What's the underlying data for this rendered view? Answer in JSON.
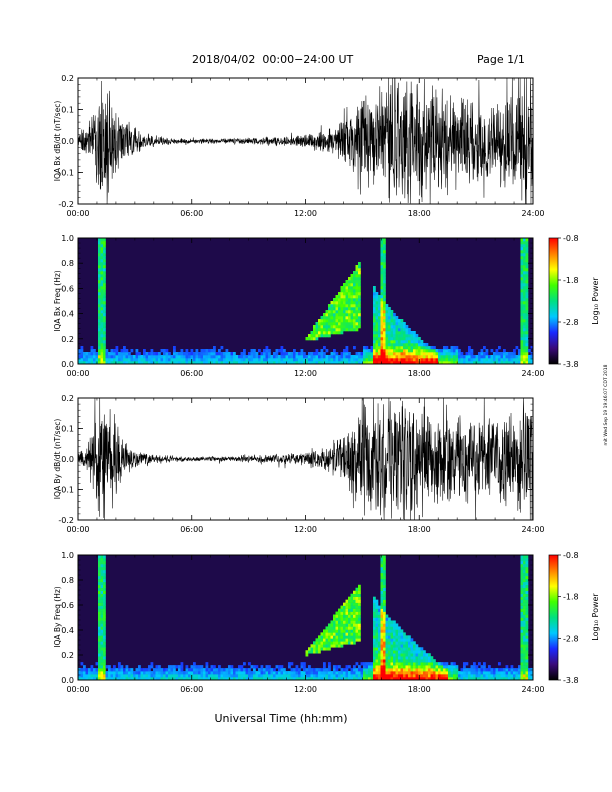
{
  "header": {
    "title": "2018/04/02  00:00−24:00 UT",
    "page": "Page 1/1"
  },
  "footer": {
    "xlabel": "Universal Time (hh:mm)",
    "side_stamp": "mit Wed Sep 19 19:46:07 CDT 2018"
  },
  "colors": {
    "waveform": "#000000",
    "spectrogram_background": "#1e0a4a",
    "colorbar_stops": [
      "#000000",
      "#3a0a7a",
      "#1a2aff",
      "#00c8ff",
      "#00e080",
      "#40ff00",
      "#ffff00",
      "#ff8000",
      "#ff0000"
    ]
  },
  "chart_data": [
    {
      "type": "line",
      "id": "bx-waveform",
      "ylabel": "IQA Bx dB/dt (nT/sec)",
      "xlim": [
        "00:00",
        "24:00"
      ],
      "ylim": [
        -0.2,
        0.2
      ],
      "xticks": [
        "00:00",
        "06:00",
        "12:00",
        "18:00",
        "24:00"
      ],
      "yticks": [
        "-0.2",
        "-0.1",
        "0.0",
        "0.1",
        "0.2"
      ],
      "amplitude_envelope": {
        "hour": [
          0,
          0.5,
          1.0,
          1.5,
          2.0,
          2.5,
          3.0,
          3.5,
          4.0,
          5.0,
          6.0,
          8.0,
          10.0,
          11.0,
          12.0,
          13.0,
          13.5,
          14.0,
          14.5,
          15.0,
          15.5,
          16.0,
          16.5,
          17.0,
          18.0,
          19.0,
          20.0,
          21.0,
          22.0,
          23.0,
          23.5,
          24.0
        ],
        "amplitude": [
          0.03,
          0.05,
          0.18,
          0.22,
          0.12,
          0.07,
          0.05,
          0.03,
          0.02,
          0.012,
          0.008,
          0.01,
          0.015,
          0.02,
          0.025,
          0.04,
          0.05,
          0.08,
          0.14,
          0.2,
          0.15,
          0.22,
          0.25,
          0.25,
          0.22,
          0.2,
          0.18,
          0.16,
          0.15,
          0.18,
          0.25,
          0.25
        ]
      }
    },
    {
      "type": "heatmap",
      "id": "bx-spectrogram",
      "ylabel": "IQA Bx Freq (Hz)",
      "xlim": [
        "00:00",
        "24:00"
      ],
      "ylim": [
        0.0,
        1.0
      ],
      "xticks": [
        "00:00",
        "06:00",
        "12:00",
        "18:00",
        "24:00"
      ],
      "yticks": [
        "0.0",
        "0.2",
        "0.4",
        "0.6",
        "0.8",
        "1.0"
      ],
      "colorbar": {
        "label": "Log₁₀ Power",
        "range": [
          -3.8,
          -0.8
        ],
        "ticks": [
          "-0.8",
          "-1.8",
          "-2.8",
          "-3.8"
        ]
      },
      "features": [
        {
          "kind": "rising-emission",
          "start_hour": 12.0,
          "end_hour": 14.9,
          "low_freq_hz": 0.2,
          "peak_freq_hz": 0.82
        },
        {
          "kind": "broadband-burst",
          "start_hour": 15.6,
          "end_hour": 19.0,
          "peak_freq_hz": 0.55
        },
        {
          "kind": "spike",
          "hour": 1.3,
          "top_freq_hz": 1.0
        },
        {
          "kind": "spike",
          "hour": 16.1,
          "top_freq_hz": 1.0
        },
        {
          "kind": "spike",
          "hour": 23.5,
          "top_freq_hz": 1.0
        }
      ]
    },
    {
      "type": "line",
      "id": "by-waveform",
      "ylabel": "IQA By dB/dt (nT/sec)",
      "xlim": [
        "00:00",
        "24:00"
      ],
      "ylim": [
        -0.2,
        0.2
      ],
      "xticks": [
        "00:00",
        "06:00",
        "12:00",
        "18:00",
        "24:00"
      ],
      "yticks": [
        "-0.2",
        "-0.1",
        "0.0",
        "0.1",
        "0.2"
      ],
      "amplitude_envelope": {
        "hour": [
          0,
          0.5,
          1.0,
          1.5,
          2.0,
          2.5,
          3.0,
          3.5,
          4.0,
          5.0,
          6.0,
          8.0,
          10.0,
          11.0,
          12.0,
          13.0,
          13.5,
          14.0,
          14.5,
          15.0,
          15.5,
          16.0,
          16.5,
          17.0,
          18.0,
          19.0,
          20.0,
          21.0,
          22.0,
          23.0,
          23.5,
          24.0
        ],
        "amplitude": [
          0.02,
          0.04,
          0.2,
          0.25,
          0.15,
          0.07,
          0.04,
          0.025,
          0.02,
          0.012,
          0.008,
          0.01,
          0.015,
          0.02,
          0.025,
          0.045,
          0.06,
          0.09,
          0.16,
          0.25,
          0.17,
          0.25,
          0.25,
          0.25,
          0.22,
          0.2,
          0.17,
          0.16,
          0.15,
          0.18,
          0.25,
          0.25
        ]
      }
    },
    {
      "type": "heatmap",
      "id": "by-spectrogram",
      "ylabel": "IQA By Freq (Hz)",
      "xlim": [
        "00:00",
        "24:00"
      ],
      "ylim": [
        0.0,
        1.0
      ],
      "xticks": [
        "00:00",
        "06:00",
        "12:00",
        "18:00",
        "24:00"
      ],
      "yticks": [
        "0.0",
        "0.2",
        "0.4",
        "0.6",
        "0.8",
        "1.0"
      ],
      "colorbar": {
        "label": "Log₁₀ Power",
        "range": [
          -3.8,
          -0.8
        ],
        "ticks": [
          "-0.8",
          "-1.8",
          "-2.8",
          "-3.8"
        ]
      },
      "features": [
        {
          "kind": "rising-emission",
          "start_hour": 12.0,
          "end_hour": 14.9,
          "low_freq_hz": 0.22,
          "peak_freq_hz": 0.78
        },
        {
          "kind": "broadband-burst",
          "start_hour": 15.6,
          "end_hour": 19.5,
          "peak_freq_hz": 0.6
        },
        {
          "kind": "spike",
          "hour": 1.3,
          "top_freq_hz": 1.0
        },
        {
          "kind": "spike",
          "hour": 16.1,
          "top_freq_hz": 1.0
        },
        {
          "kind": "spike",
          "hour": 23.5,
          "top_freq_hz": 1.0
        }
      ]
    }
  ]
}
